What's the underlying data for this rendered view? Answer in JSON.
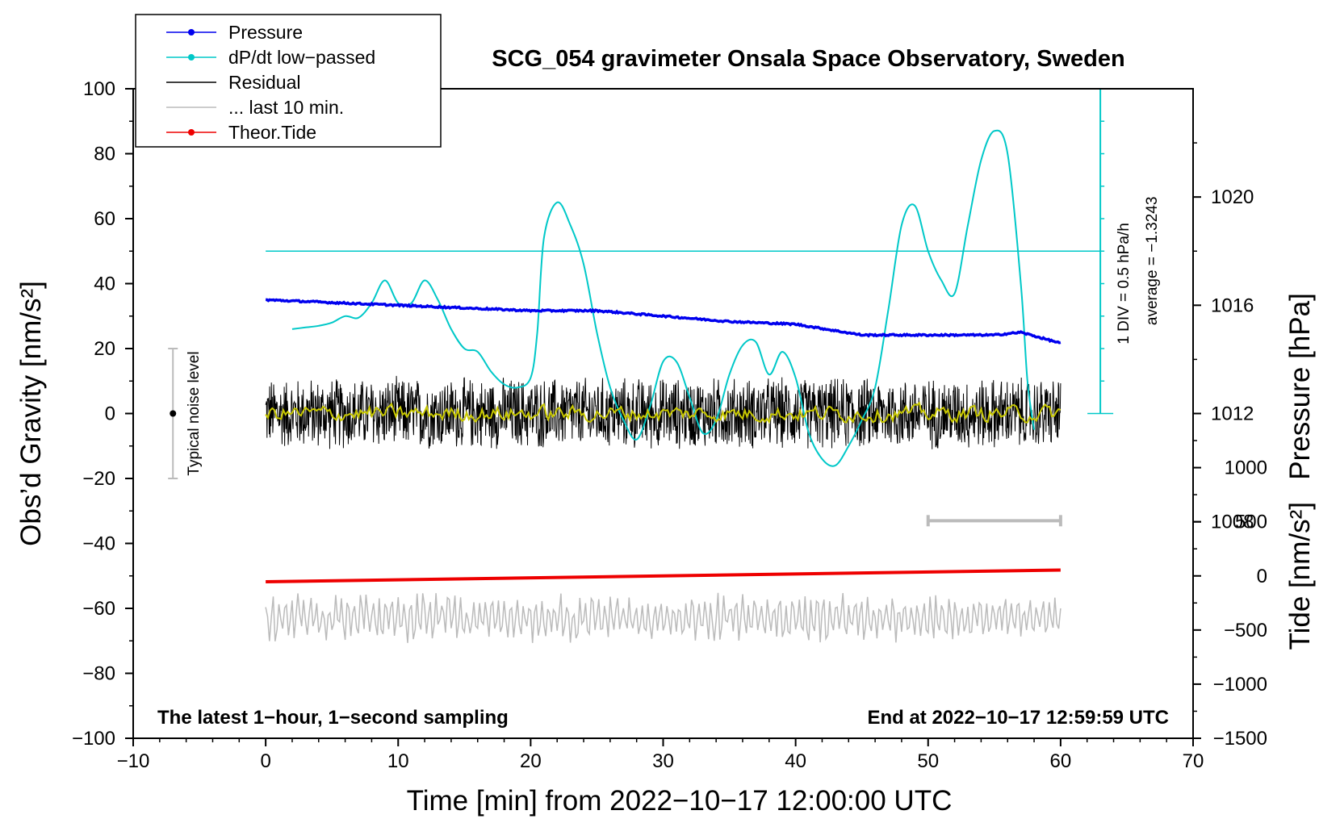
{
  "chart_data": {
    "type": "line",
    "title": "SCG_054 gravimeter Onsala Space Observatory, Sweden",
    "xlabel": "Time [min] from 2022−10−17 12:00:00 UTC",
    "ylabel_left": "Obs’d Gravity [nm/s²]",
    "ylabel_right_top": "Pressure [hPa]",
    "ylabel_right_bottom": "Tide [nm/s²]",
    "xlim": [
      -10,
      70
    ],
    "ylim": [
      -100,
      100
    ],
    "pressure_lim": [
      1000,
      1024
    ],
    "tide_lim": [
      -1500,
      4500
    ],
    "xticks": [
      -10,
      0,
      10,
      20,
      30,
      40,
      50,
      60,
      70
    ],
    "xtick_labels": [
      "−10",
      "0",
      "10",
      "20",
      "30",
      "40",
      "50",
      "60",
      "70"
    ],
    "yticks": [
      100,
      80,
      60,
      40,
      20,
      0,
      -20,
      -40,
      -60,
      -80,
      -100
    ],
    "ytick_labels": [
      "100",
      "80",
      "60",
      "40",
      "20",
      "0",
      "−20",
      "−40",
      "−60",
      "−80",
      "−100"
    ],
    "pressure_ticks": [
      1020,
      1016,
      1012,
      1008
    ],
    "pressure_tick_labels": [
      "1020",
      "1016",
      "1012",
      "1008"
    ],
    "tide_ticks": [
      1000,
      500,
      0,
      -500,
      -1000,
      -1500
    ],
    "tide_tick_labels": [
      "1000",
      "500",
      "0",
      "−500",
      "−1000",
      "−1500"
    ],
    "legend": {
      "position": "top-left",
      "entries": [
        {
          "label": "Pressure",
          "color": "#0000ee",
          "marker": true
        },
        {
          "label": "dP/dt low−passed",
          "color": "#00c8c8",
          "marker": true
        },
        {
          "label": "Residual",
          "color": "#000000",
          "marker": false
        },
        {
          "label": "... last 10 min.",
          "color": "#bbbbbb",
          "marker": false
        },
        {
          "label": "Theor.Tide",
          "color": "#ee0000",
          "marker": true
        }
      ]
    },
    "series": [
      {
        "name": "Pressure",
        "color": "#0000ee",
        "axis": "pressure",
        "x": [
          0,
          5,
          10,
          15,
          20,
          25,
          30,
          35,
          40,
          45,
          50,
          55,
          57,
          60
        ],
        "y": [
          1016.2,
          1016.1,
          1016.0,
          1015.9,
          1015.8,
          1015.8,
          1015.6,
          1015.4,
          1015.3,
          1014.9,
          1014.9,
          1014.9,
          1015.0,
          1014.6
        ]
      },
      {
        "name": "dP/dt low−passed",
        "color": "#00c8c8",
        "axis": "gravity",
        "x": [
          2,
          3,
          4,
          5,
          6,
          7,
          8,
          9,
          10,
          11,
          12,
          13,
          14,
          15,
          16,
          17,
          18,
          19,
          20,
          20.5,
          21,
          22,
          23,
          24,
          25,
          26,
          27,
          28,
          29,
          30,
          31,
          32,
          33,
          34,
          35,
          36,
          37,
          38,
          39,
          40,
          41,
          42,
          43,
          44,
          45,
          46,
          47,
          48,
          49,
          50,
          51,
          52,
          53,
          54,
          55,
          56,
          57,
          57.5,
          58
        ],
        "y": [
          26,
          26.5,
          27,
          28,
          30,
          29.5,
          34,
          41,
          34,
          34,
          41,
          35,
          26,
          20,
          19,
          13,
          9,
          8,
          11,
          25,
          54,
          65,
          58,
          46,
          25,
          8,
          -2,
          -8,
          2,
          16,
          16,
          5,
          -6,
          -2,
          12,
          21,
          22,
          12,
          19,
          11,
          -6,
          -14,
          -16,
          -10,
          -2,
          8,
          32,
          58,
          64,
          50,
          41,
          37,
          58,
          78,
          87,
          80,
          40,
          10,
          -5
        ]
      },
      {
        "name": "Residual",
        "color": "#000000",
        "axis": "gravity",
        "x": [
          0,
          60
        ],
        "amplitude": 12
      },
      {
        "name": "Residual smoothed",
        "color": "#c8c800",
        "axis": "gravity",
        "x": [
          0,
          60
        ],
        "amplitude": 2
      },
      {
        "name": "... last 10 min.",
        "color": "#bbbbbb",
        "axis": "gravity",
        "x": [
          0,
          60
        ],
        "center": -63,
        "amplitude": 8
      },
      {
        "name": "Theor.Tide",
        "color": "#ee0000",
        "axis": "gravity",
        "x": [
          0,
          60
        ],
        "y": [
          -51.8,
          -48.2
        ]
      }
    ],
    "reference_line": {
      "y": 50,
      "color": "#00c8c8",
      "x": [
        0,
        63
      ]
    },
    "dpdt_scale": {
      "divisions": 10,
      "label_1": "1 DIV = 0.5 hPa/h",
      "label_2": "average = −1.3243"
    },
    "noise_bar": {
      "x": -7,
      "y_low": -20,
      "y_high": 20,
      "label": "Typical noise level"
    },
    "last10_bar": {
      "x_start": 50,
      "x_end": 60,
      "y": -33
    },
    "annotations": {
      "bottom_left": "The latest 1−hour, 1−second sampling",
      "bottom_right": "End at 2022−10−17 12:59:59 UTC"
    }
  }
}
